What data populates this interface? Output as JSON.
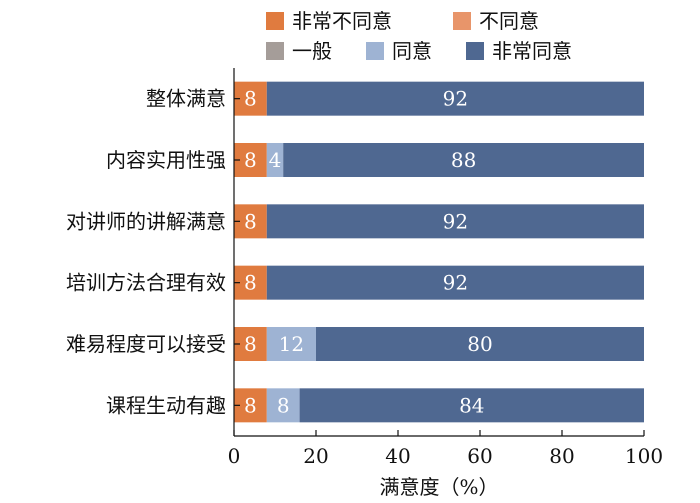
{
  "chart_data": {
    "type": "bar",
    "orientation": "horizontal",
    "stacked": true,
    "xlabel": "满意度（%）",
    "xlim": [
      0,
      100
    ],
    "xticks": [
      0,
      20,
      40,
      60,
      80,
      100
    ],
    "grid": false,
    "legend_position": "top-right",
    "categories": [
      "整体满意",
      "内容实用性强",
      "对讲师的讲解满意",
      "培训方法合理有效",
      "难易程度可以接受",
      "课程生动有趣"
    ],
    "series": [
      {
        "name": "非常不同意",
        "color": "#E07B3F",
        "values": [
          8,
          8,
          8,
          8,
          8,
          8
        ]
      },
      {
        "name": "不同意",
        "color": "#E8956A",
        "values": [
          0,
          0,
          0,
          0,
          0,
          0
        ]
      },
      {
        "name": "一般",
        "color": "#A59D99",
        "values": [
          0,
          0,
          0,
          0,
          0,
          0
        ]
      },
      {
        "name": "同意",
        "color": "#9EB3D3",
        "values": [
          0,
          4,
          0,
          0,
          12,
          8
        ]
      },
      {
        "name": "非常同意",
        "color": "#4F6891",
        "values": [
          92,
          88,
          92,
          92,
          80,
          84
        ]
      }
    ]
  }
}
